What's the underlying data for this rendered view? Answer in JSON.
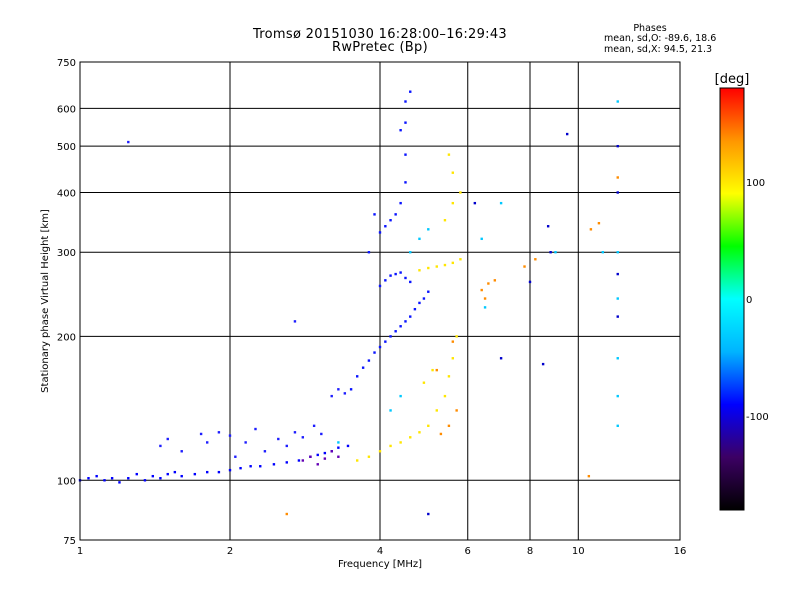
{
  "header": {
    "title_line1": "Tromsø 20151030 16:28:00–16:29:43",
    "title_line2": "RwPretec (Bp)"
  },
  "stats": {
    "title": "Phases",
    "o_line": "mean, sd,O: -89.6, 18.6",
    "x_line": "mean, sd,X:  94.5, 21.3"
  },
  "chart_data": {
    "type": "scatter",
    "xlabel": "Frequency [MHz]",
    "ylabel": "Stationary phase Virtual Height [km]",
    "x_scale": "log",
    "y_scale": "log",
    "xlim": [
      1,
      16
    ],
    "ylim": [
      75,
      750
    ],
    "x_ticks": [
      1,
      2,
      4,
      6,
      8,
      10,
      16
    ],
    "x_tick_labels": [
      "1",
      "2",
      "4",
      "6",
      "8",
      "10",
      "16"
    ],
    "y_ticks": [
      75,
      100,
      200,
      300,
      400,
      500,
      600,
      750
    ],
    "y_tick_labels": [
      "75",
      "100",
      "200",
      "300",
      "400",
      "500",
      "600",
      "750"
    ],
    "grid": true,
    "colorbar": {
      "label": "[deg]",
      "range": [
        -180,
        180
      ],
      "ticks": [
        100,
        0,
        -100
      ],
      "tick_labels": [
        "100",
        "0",
        "-100"
      ],
      "colors": [
        "#000000",
        "#3c0064",
        "#0000ff",
        "#00b4ff",
        "#00ffff",
        "#00ff00",
        "#ffff00",
        "#ff9600",
        "#ff0000"
      ]
    },
    "series": [
      {
        "trace": "E-region lower trace",
        "color": "#0000ff",
        "points": [
          [
            1.0,
            100
          ],
          [
            1.04,
            101
          ],
          [
            1.08,
            102
          ],
          [
            1.12,
            100
          ],
          [
            1.16,
            101
          ],
          [
            1.2,
            99
          ],
          [
            1.25,
            101
          ],
          [
            1.3,
            103
          ],
          [
            1.35,
            100
          ],
          [
            1.4,
            102
          ],
          [
            1.45,
            101
          ],
          [
            1.5,
            103
          ],
          [
            1.55,
            104
          ],
          [
            1.6,
            102
          ],
          [
            1.7,
            103
          ],
          [
            1.8,
            104
          ],
          [
            1.9,
            104
          ],
          [
            2.0,
            105
          ],
          [
            2.1,
            106
          ],
          [
            2.2,
            107
          ],
          [
            2.3,
            107
          ],
          [
            2.45,
            108
          ],
          [
            2.6,
            109
          ],
          [
            2.75,
            110
          ],
          [
            2.9,
            112
          ],
          [
            3.0,
            113
          ],
          [
            3.1,
            114
          ],
          [
            3.2,
            115
          ],
          [
            3.3,
            117
          ],
          [
            3.45,
            118
          ]
        ]
      },
      {
        "trace": "E-region scatter",
        "color": "#1e1eff",
        "points": [
          [
            1.45,
            118
          ],
          [
            1.5,
            122
          ],
          [
            1.6,
            115
          ],
          [
            1.75,
            125
          ],
          [
            1.8,
            120
          ],
          [
            1.9,
            126
          ],
          [
            2.0,
            124
          ],
          [
            2.05,
            112
          ],
          [
            2.15,
            120
          ],
          [
            2.25,
            128
          ],
          [
            2.35,
            115
          ],
          [
            2.5,
            122
          ],
          [
            2.6,
            118
          ],
          [
            2.7,
            126
          ],
          [
            2.8,
            123
          ],
          [
            2.95,
            130
          ],
          [
            3.05,
            125
          ],
          [
            3.2,
            150
          ],
          [
            3.3,
            155
          ],
          [
            3.4,
            152
          ],
          [
            2.7,
            215
          ],
          [
            1.25,
            510
          ]
        ]
      },
      {
        "trace": "F-region O-mode",
        "color": "#0a14ff",
        "points": [
          [
            3.5,
            155
          ],
          [
            3.6,
            165
          ],
          [
            3.7,
            172
          ],
          [
            3.8,
            178
          ],
          [
            3.9,
            185
          ],
          [
            4.0,
            190
          ],
          [
            4.1,
            195
          ],
          [
            4.2,
            200
          ],
          [
            4.3,
            205
          ],
          [
            4.4,
            210
          ],
          [
            4.5,
            215
          ],
          [
            4.6,
            220
          ],
          [
            4.7,
            228
          ],
          [
            4.8,
            235
          ],
          [
            4.9,
            240
          ],
          [
            5.0,
            248
          ],
          [
            4.0,
            255
          ],
          [
            4.1,
            262
          ],
          [
            4.2,
            268
          ],
          [
            4.3,
            270
          ],
          [
            4.4,
            272
          ],
          [
            4.5,
            265
          ],
          [
            4.6,
            260
          ],
          [
            4.0,
            330
          ],
          [
            4.1,
            340
          ],
          [
            4.2,
            350
          ],
          [
            4.3,
            360
          ],
          [
            4.4,
            380
          ],
          [
            4.5,
            420
          ],
          [
            4.5,
            480
          ],
          [
            4.5,
            560
          ],
          [
            4.5,
            620
          ],
          [
            4.6,
            650
          ],
          [
            4.4,
            540
          ],
          [
            3.9,
            360
          ],
          [
            3.8,
            300
          ]
        ]
      },
      {
        "trace": "F-region X-mode",
        "color": "#ffe600",
        "points": [
          [
            3.6,
            110
          ],
          [
            3.8,
            112
          ],
          [
            4.0,
            115
          ],
          [
            4.2,
            118
          ],
          [
            4.4,
            120
          ],
          [
            4.6,
            123
          ],
          [
            4.8,
            126
          ],
          [
            5.0,
            130
          ],
          [
            5.2,
            140
          ],
          [
            5.4,
            150
          ],
          [
            5.5,
            165
          ],
          [
            5.6,
            180
          ],
          [
            5.7,
            200
          ],
          [
            4.8,
            275
          ],
          [
            5.0,
            278
          ],
          [
            5.2,
            280
          ],
          [
            5.4,
            282
          ],
          [
            5.6,
            285
          ],
          [
            5.8,
            290
          ],
          [
            5.4,
            350
          ],
          [
            5.6,
            380
          ],
          [
            5.8,
            400
          ],
          [
            5.6,
            440
          ],
          [
            5.5,
            480
          ],
          [
            4.9,
            160
          ],
          [
            5.1,
            170
          ]
        ]
      },
      {
        "trace": "orange cluster",
        "color": "#ff8c00",
        "points": [
          [
            5.3,
            125
          ],
          [
            5.5,
            130
          ],
          [
            5.7,
            140
          ],
          [
            5.2,
            170
          ],
          [
            5.6,
            195
          ],
          [
            6.4,
            250
          ],
          [
            6.6,
            258
          ],
          [
            6.8,
            262
          ],
          [
            6.5,
            240
          ],
          [
            7.8,
            280
          ],
          [
            8.2,
            290
          ],
          [
            10.6,
            335
          ],
          [
            11.0,
            345
          ],
          [
            12.0,
            430
          ],
          [
            10.5,
            102
          ],
          [
            2.6,
            85
          ]
        ]
      },
      {
        "trace": "cyan scatter",
        "color": "#00c8ff",
        "points": [
          [
            4.6,
            300
          ],
          [
            4.8,
            320
          ],
          [
            5.0,
            335
          ],
          [
            4.4,
            150
          ],
          [
            4.2,
            140
          ],
          [
            6.4,
            320
          ],
          [
            7.0,
            380
          ],
          [
            6.5,
            230
          ],
          [
            12.0,
            130
          ],
          [
            12.0,
            150
          ],
          [
            12.0,
            180
          ],
          [
            12.0,
            240
          ],
          [
            12.0,
            300
          ],
          [
            12.0,
            620
          ],
          [
            11.2,
            300
          ],
          [
            9.0,
            300
          ],
          [
            3.3,
            120
          ]
        ]
      },
      {
        "trace": "purple scatter",
        "color": "#6400b4",
        "points": [
          [
            2.8,
            110
          ],
          [
            2.9,
            112
          ],
          [
            3.0,
            108
          ],
          [
            3.1,
            111
          ],
          [
            3.2,
            115
          ],
          [
            3.3,
            112
          ]
        ]
      },
      {
        "trace": "high-frequency scatter",
        "color": "#0000cc",
        "points": [
          [
            8.5,
            175
          ],
          [
            8.7,
            340
          ],
          [
            9.5,
            530
          ],
          [
            12.0,
            500
          ],
          [
            12.0,
            400
          ],
          [
            12.0,
            270
          ],
          [
            12.0,
            220
          ],
          [
            6.2,
            380
          ],
          [
            5.0,
            85
          ],
          [
            7.0,
            180
          ],
          [
            8.0,
            260
          ],
          [
            8.8,
            300
          ]
        ]
      }
    ]
  }
}
